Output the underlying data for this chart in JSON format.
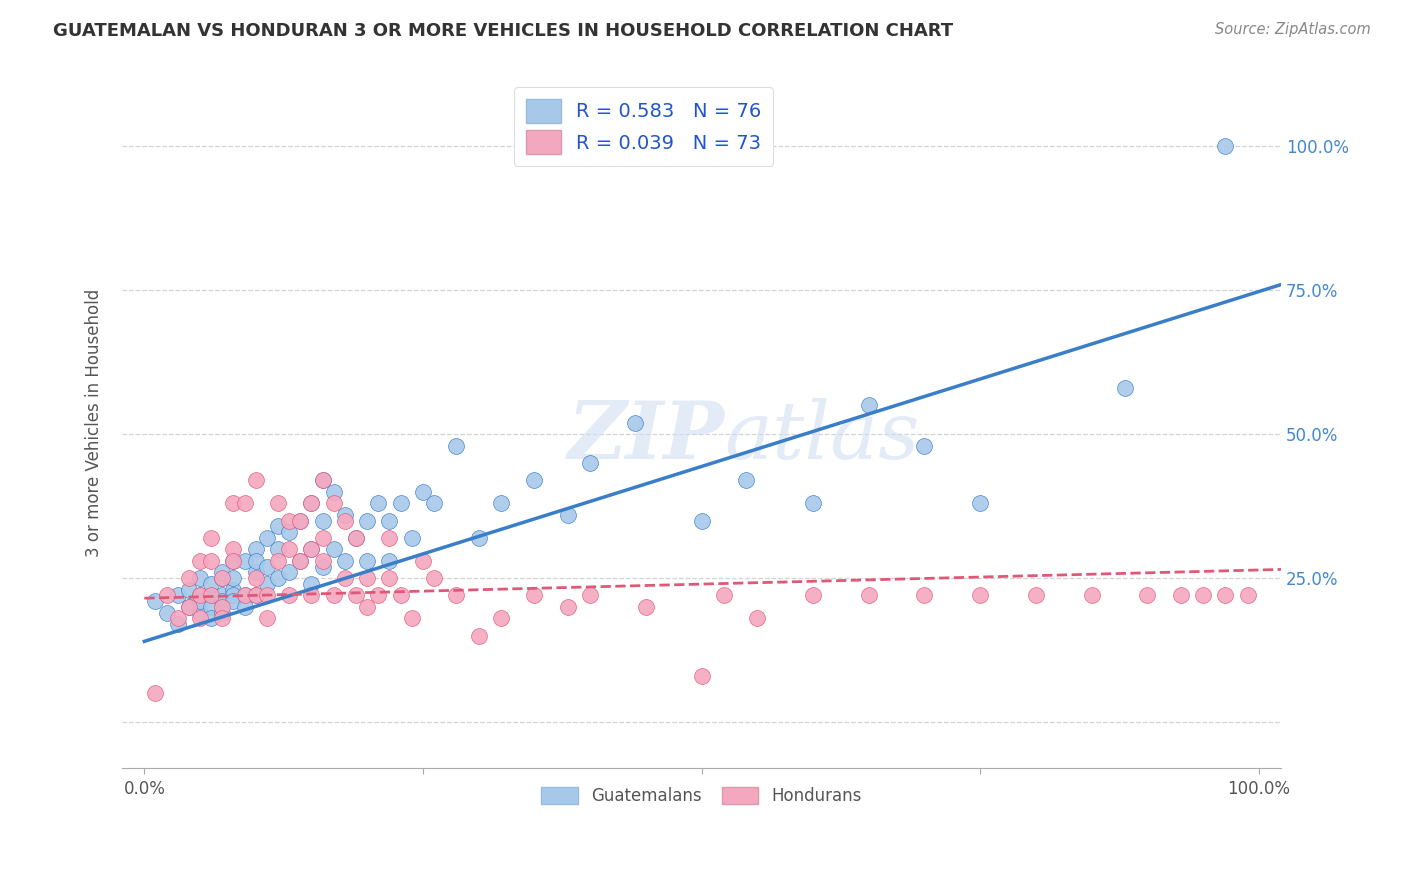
{
  "title": "GUATEMALAN VS HONDURAN 3 OR MORE VEHICLES IN HOUSEHOLD CORRELATION CHART",
  "source": "Source: ZipAtlas.com",
  "ylabel": "3 or more Vehicles in Household",
  "watermark": "ZIPatlas",
  "xlim": [
    -0.02,
    1.02
  ],
  "ylim": [
    -0.08,
    1.12
  ],
  "guatemalan_R": 0.583,
  "guatemalan_N": 76,
  "honduran_R": 0.039,
  "honduran_N": 73,
  "scatter_blue_color": "#a8c8ea",
  "scatter_pink_color": "#f4a8c0",
  "line_blue_color": "#3a7ec8",
  "line_pink_color": "#e05878",
  "legend_text_color": "#2255cc",
  "background_color": "#ffffff",
  "grid_color": "#c8c8c8",
  "guatemalan_x": [
    0.01,
    0.02,
    0.03,
    0.03,
    0.04,
    0.04,
    0.05,
    0.05,
    0.05,
    0.05,
    0.06,
    0.06,
    0.06,
    0.06,
    0.07,
    0.07,
    0.07,
    0.07,
    0.07,
    0.08,
    0.08,
    0.08,
    0.08,
    0.08,
    0.09,
    0.09,
    0.09,
    0.1,
    0.1,
    0.1,
    0.1,
    0.11,
    0.11,
    0.11,
    0.12,
    0.12,
    0.12,
    0.13,
    0.13,
    0.14,
    0.14,
    0.15,
    0.15,
    0.15,
    0.16,
    0.16,
    0.16,
    0.17,
    0.17,
    0.18,
    0.18,
    0.19,
    0.2,
    0.2,
    0.21,
    0.22,
    0.22,
    0.23,
    0.24,
    0.25,
    0.26,
    0.28,
    0.3,
    0.32,
    0.35,
    0.38,
    0.4,
    0.44,
    0.5,
    0.54,
    0.6,
    0.65,
    0.7,
    0.75,
    0.88,
    0.97
  ],
  "guatemalan_y": [
    0.21,
    0.19,
    0.22,
    0.17,
    0.23,
    0.2,
    0.22,
    0.25,
    0.19,
    0.21,
    0.22,
    0.2,
    0.24,
    0.18,
    0.25,
    0.22,
    0.21,
    0.26,
    0.19,
    0.28,
    0.23,
    0.22,
    0.21,
    0.25,
    0.28,
    0.22,
    0.2,
    0.3,
    0.26,
    0.28,
    0.22,
    0.32,
    0.27,
    0.24,
    0.3,
    0.34,
    0.25,
    0.33,
    0.26,
    0.35,
    0.28,
    0.38,
    0.3,
    0.24,
    0.42,
    0.35,
    0.27,
    0.4,
    0.3,
    0.36,
    0.28,
    0.32,
    0.35,
    0.28,
    0.38,
    0.35,
    0.28,
    0.38,
    0.32,
    0.4,
    0.38,
    0.48,
    0.32,
    0.38,
    0.42,
    0.36,
    0.45,
    0.52,
    0.35,
    0.42,
    0.38,
    0.55,
    0.48,
    0.38,
    0.58,
    1.0
  ],
  "honduran_x": [
    0.01,
    0.02,
    0.03,
    0.04,
    0.04,
    0.05,
    0.05,
    0.05,
    0.06,
    0.06,
    0.06,
    0.07,
    0.07,
    0.07,
    0.08,
    0.08,
    0.08,
    0.09,
    0.09,
    0.1,
    0.1,
    0.1,
    0.11,
    0.11,
    0.12,
    0.12,
    0.13,
    0.13,
    0.13,
    0.14,
    0.14,
    0.15,
    0.15,
    0.15,
    0.16,
    0.16,
    0.16,
    0.17,
    0.17,
    0.18,
    0.18,
    0.19,
    0.19,
    0.2,
    0.2,
    0.21,
    0.22,
    0.22,
    0.23,
    0.24,
    0.25,
    0.26,
    0.28,
    0.3,
    0.32,
    0.35,
    0.38,
    0.4,
    0.45,
    0.5,
    0.52,
    0.55,
    0.6,
    0.65,
    0.7,
    0.75,
    0.8,
    0.85,
    0.9,
    0.93,
    0.95,
    0.97,
    0.99
  ],
  "honduran_y": [
    0.05,
    0.22,
    0.18,
    0.2,
    0.25,
    0.22,
    0.28,
    0.18,
    0.22,
    0.28,
    0.32,
    0.2,
    0.25,
    0.18,
    0.3,
    0.38,
    0.28,
    0.38,
    0.22,
    0.42,
    0.25,
    0.22,
    0.22,
    0.18,
    0.28,
    0.38,
    0.3,
    0.22,
    0.35,
    0.35,
    0.28,
    0.38,
    0.22,
    0.3,
    0.42,
    0.28,
    0.32,
    0.38,
    0.22,
    0.35,
    0.25,
    0.32,
    0.22,
    0.25,
    0.2,
    0.22,
    0.32,
    0.25,
    0.22,
    0.18,
    0.28,
    0.25,
    0.22,
    0.15,
    0.18,
    0.22,
    0.2,
    0.22,
    0.2,
    0.08,
    0.22,
    0.18,
    0.22,
    0.22,
    0.22,
    0.22,
    0.22,
    0.22,
    0.22,
    0.22,
    0.22,
    0.22,
    0.22
  ],
  "blue_line_x0": 0.0,
  "blue_line_y0": 0.14,
  "blue_line_x1": 1.02,
  "blue_line_y1": 0.76,
  "pink_line_x0": 0.0,
  "pink_line_y0": 0.215,
  "pink_line_x1": 1.02,
  "pink_line_y1": 0.265
}
